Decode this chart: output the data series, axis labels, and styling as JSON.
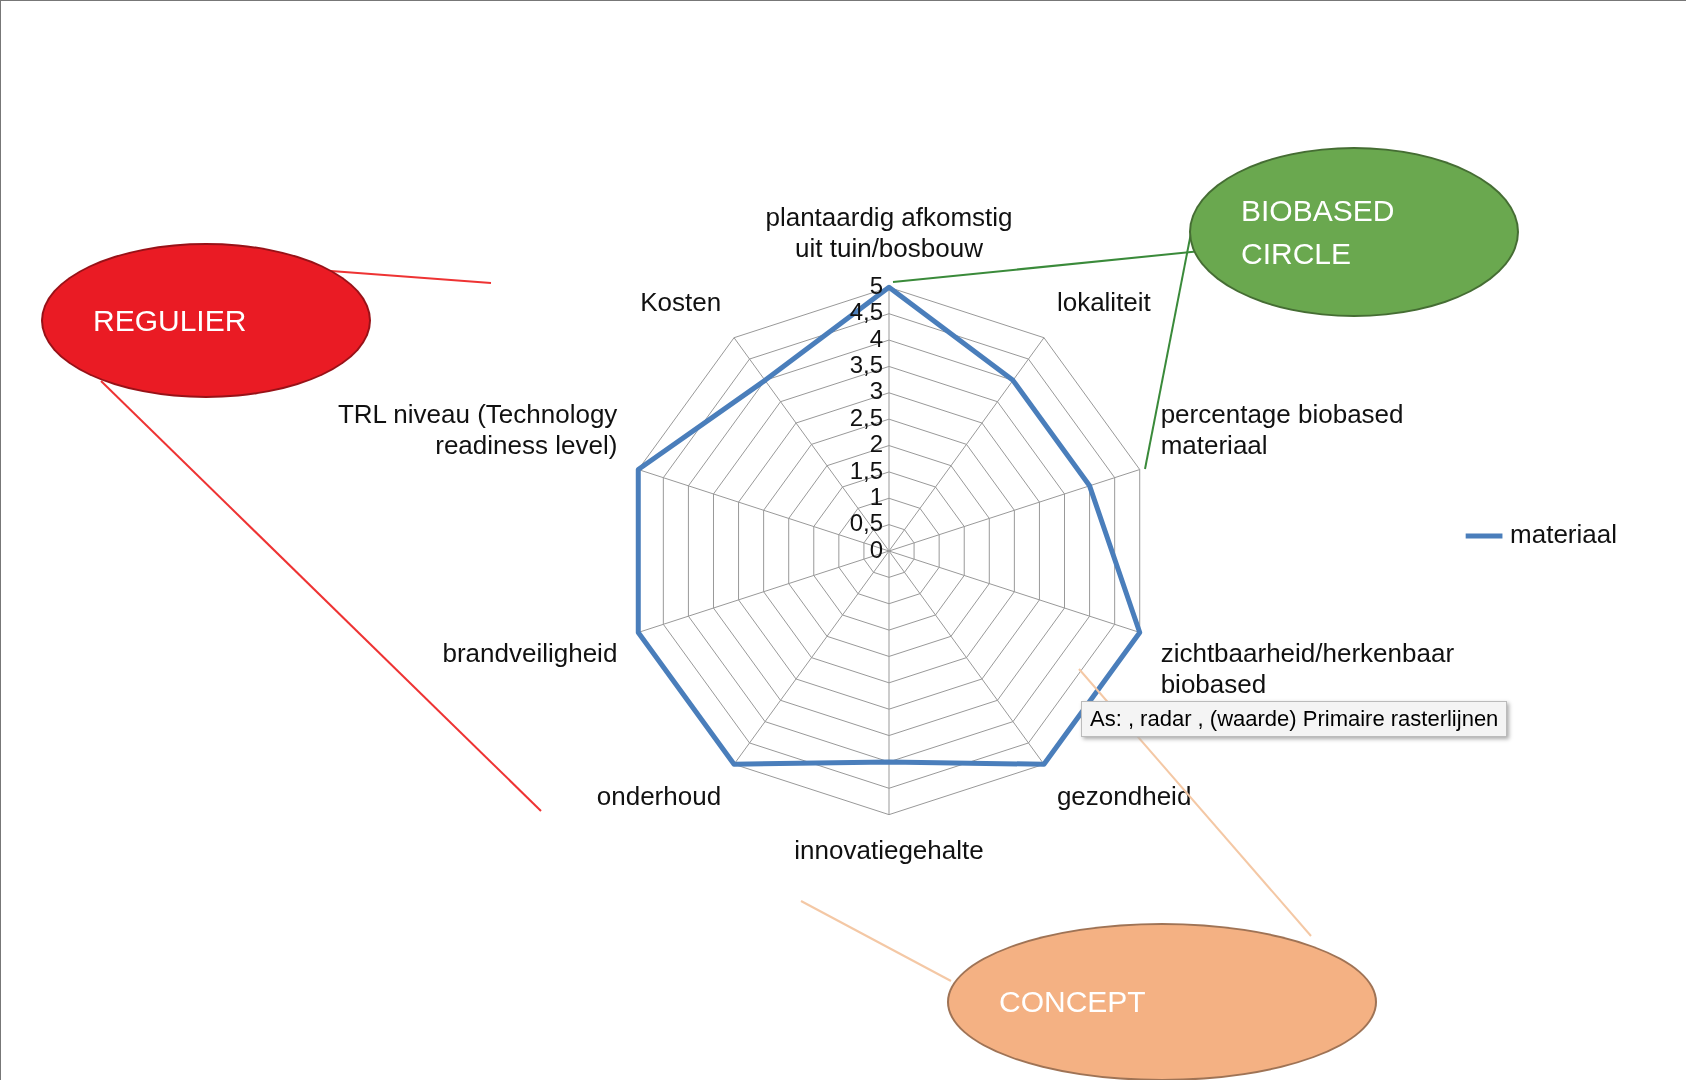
{
  "chart_data": {
    "type": "radar",
    "categories": [
      "plantaardig afkomstig uit tuin/bosbouw",
      "lokaliteit",
      "percentage biobased materiaal",
      "zichtbaarheid/herkenbaar biobased",
      "gezondheid",
      "innovatiegehalte",
      "onderhoud",
      "brandveiligheid",
      "TRL niveau (Technology readiness level)",
      "Kosten"
    ],
    "series": [
      {
        "name": "materiaal",
        "color": "#4a7ebb",
        "values": [
          5,
          4,
          4,
          5,
          5,
          4,
          5,
          5,
          5,
          4
        ]
      }
    ],
    "ylim": [
      0,
      5
    ],
    "yticks": [
      0,
      {
        "value": 0.5,
        "label": "0,5"
      },
      1,
      {
        "value": 1.5,
        "label": "1,5"
      },
      2,
      {
        "value": 2.5,
        "label": "2,5"
      },
      3,
      {
        "value": 3.5,
        "label": "3,5"
      },
      4,
      {
        "value": 4.5,
        "label": "4,5"
      },
      5
    ],
    "grid": true,
    "legend": "right",
    "marker": "none",
    "line_style": "solid",
    "annotations": [
      "REGULIER",
      "BIOBASED CIRCLE",
      "CONCEPT",
      "As: , radar , (waarde)  Primaire rasterlijnen"
    ]
  }
}
